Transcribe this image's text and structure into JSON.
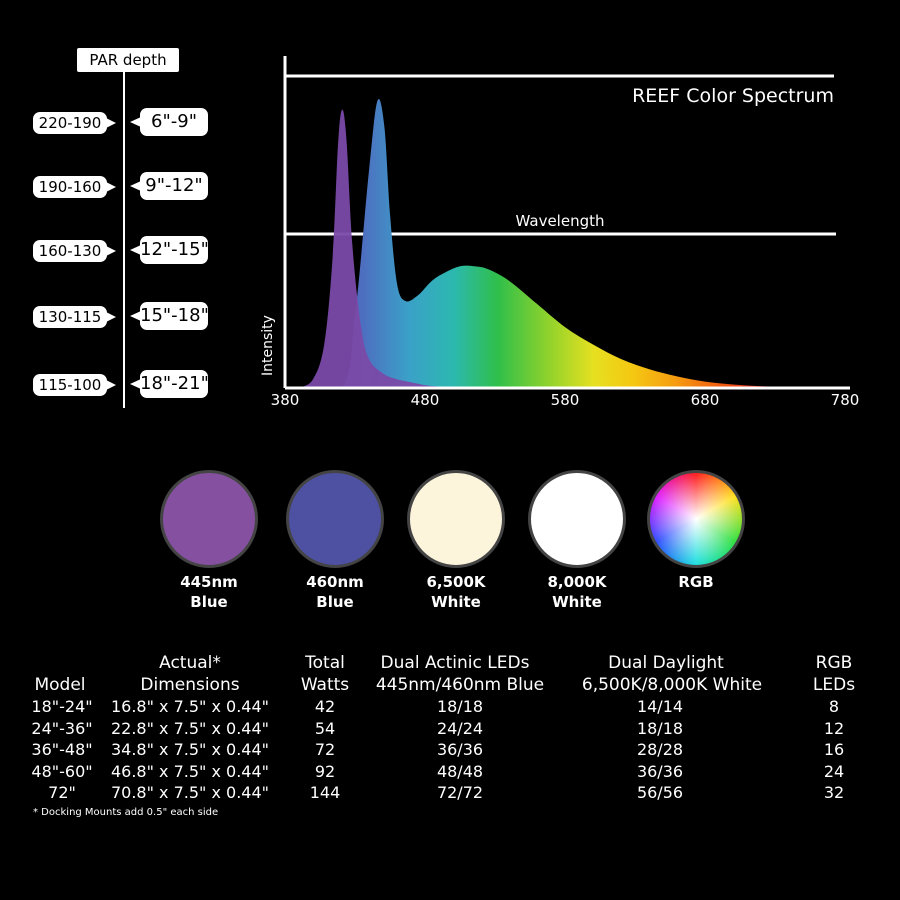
{
  "par_depth": {
    "header": "PAR  depth",
    "rows": [
      {
        "par": "220-190",
        "depth": "6\"-9\""
      },
      {
        "par": "190-160",
        "depth": "9\"-12\""
      },
      {
        "par": "160-130",
        "depth": "12\"-15\""
      },
      {
        "par": "130-115",
        "depth": "15\"-18\""
      },
      {
        "par": "115-100",
        "depth": "18\"-21\""
      }
    ]
  },
  "chart_data": {
    "type": "area",
    "title": "REEF Color Spectrum",
    "xlabel": "Wavelength",
    "ylabel": "Intensity",
    "xlim": [
      380,
      780
    ],
    "ylim": [
      0,
      1
    ],
    "x_ticks": [
      380,
      480,
      580,
      680,
      780
    ],
    "series": [
      {
        "color": "#7a4aa8",
        "x": [
          390,
          400,
          408,
          414,
          418,
          421,
          424,
          428,
          434,
          440,
          450,
          460,
          470,
          480,
          490,
          500
        ],
        "values": [
          0.0,
          0.03,
          0.15,
          0.45,
          0.85,
          0.96,
          0.85,
          0.5,
          0.22,
          0.1,
          0.05,
          0.03,
          0.02,
          0.01,
          0.005,
          0.0
        ]
      },
      {
        "color": "spectrum",
        "x": [
          380,
          420,
          430,
          440,
          446,
          451,
          455,
          460,
          466,
          475,
          485,
          495,
          505,
          515,
          525,
          540,
          560,
          580,
          600,
          620,
          640,
          660,
          680,
          700,
          720,
          740,
          760,
          780
        ],
        "values": [
          0.0,
          0.0,
          0.25,
          0.75,
          0.99,
          0.9,
          0.6,
          0.36,
          0.3,
          0.32,
          0.37,
          0.4,
          0.42,
          0.42,
          0.41,
          0.37,
          0.29,
          0.21,
          0.15,
          0.1,
          0.065,
          0.04,
          0.022,
          0.012,
          0.006,
          0.003,
          0.001,
          0.0
        ]
      }
    ],
    "grid": false
  },
  "leds": [
    {
      "line1": "445nm",
      "line2": "Blue",
      "color": "#8550a0"
    },
    {
      "line1": "460nm",
      "line2": "Blue",
      "color": "#4e50a2"
    },
    {
      "line1": "6,500K",
      "line2": "White",
      "color": "#fdf4dc"
    },
    {
      "line1": "8,000K",
      "line2": "White",
      "color": "#ffffff"
    },
    {
      "line1": "RGB",
      "line2": "",
      "color": "rgb-wheel"
    }
  ],
  "table": {
    "headers": {
      "model": "Model",
      "dims_top": "Actual*",
      "dims": "Dimensions",
      "watts_top": "Total",
      "watts": "Watts",
      "actinic_top": "Dual Actinic LEDs",
      "actinic": "445nm/460nm Blue",
      "daylight_top": "Dual Daylight",
      "daylight": "6,500K/8,000K White",
      "rgb_top": "RGB",
      "rgb": "LEDs"
    },
    "rows": [
      {
        "model": "18\"-24\"",
        "dims": "16.8\" x 7.5\" x 0.44\"",
        "watts": "42",
        "actinic": "18/18",
        "daylight": "14/14",
        "rgb": "8"
      },
      {
        "model": "24\"-36\"",
        "dims": "22.8\" x 7.5\" x 0.44\"",
        "watts": "54",
        "actinic": "24/24",
        "daylight": "18/18",
        "rgb": "12"
      },
      {
        "model": "36\"-48\"",
        "dims": "34.8\" x 7.5\" x 0.44\"",
        "watts": "72",
        "actinic": "36/36",
        "daylight": "28/28",
        "rgb": "16"
      },
      {
        "model": "48\"-60\"",
        "dims": "46.8\" x 7.5\" x 0.44\"",
        "watts": "92",
        "actinic": "48/48",
        "daylight": "36/36",
        "rgb": "24"
      },
      {
        "model": "72\"",
        "dims": "70.8\" x 7.5\" x 0.44\"",
        "watts": "144",
        "actinic": "72/72",
        "daylight": "56/56",
        "rgb": "32"
      }
    ],
    "footnote": "* Docking Mounts add 0.5\" each side"
  }
}
